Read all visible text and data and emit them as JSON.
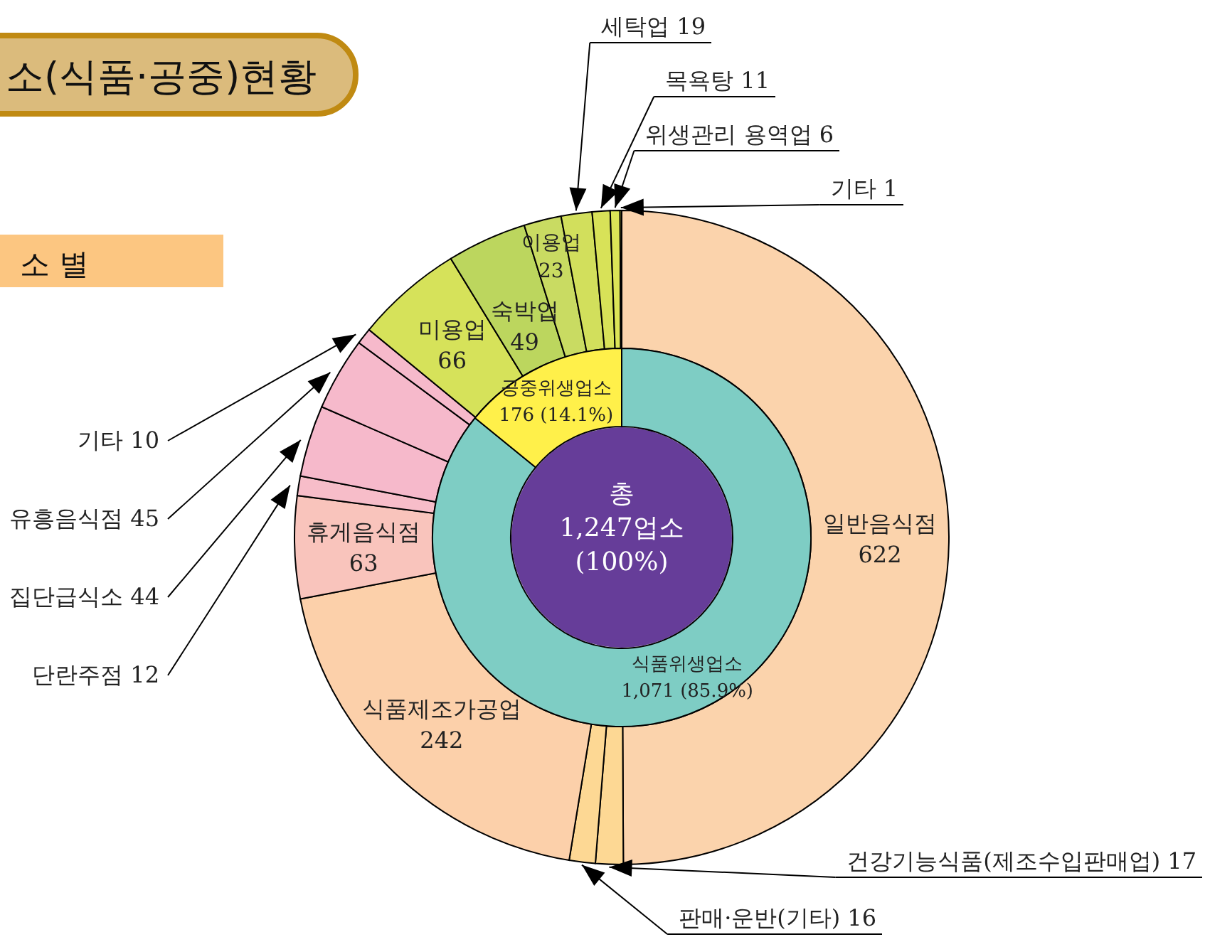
{
  "chart_data": [
    {
      "type": "donut",
      "title": "소(식품·공중)현황",
      "subtitle": "소 별",
      "data_labels": true,
      "categories": [
        "일반음식점",
        "건강기능식품(제조수입판매업)",
        "판매·운반(기타)",
        "식품제조가공업",
        "휴게음식점",
        "단란주점",
        "집단급식소",
        "유흥음식점",
        "기타",
        "미용업",
        "숙박업",
        "이용업",
        "세탁업",
        "목욕탕",
        "위생관리 용역업",
        "기타"
      ],
      "values": [
        622,
        17,
        16,
        242,
        63,
        12,
        44,
        45,
        10,
        66,
        49,
        23,
        19,
        11,
        6,
        1
      ],
      "colors": [
        "#fbd3ac",
        "#fdd894",
        "#fdd894",
        "#fcd0aa",
        "#f9c4bc",
        "#f7bdc9",
        "#f6b9cb",
        "#f6b9cb",
        "#f6b9cb",
        "#d6e25a",
        "#bcd65e",
        "#c9db62",
        "#d2df5c",
        "#d8e258",
        "#dce457",
        "#e0e655"
      ]
    },
    {
      "type": "donut",
      "categories": [
        "식품위생업소",
        "공중위생업소"
      ],
      "values": [
        1071,
        176
      ],
      "colors": [
        "#7ecdc4",
        "#fff04a"
      ],
      "value_labels": [
        "1,071 (85.9%)",
        "176 (14.1%)"
      ],
      "annotations": [
        "총",
        "1,247업소",
        "(100%)"
      ]
    }
  ]
}
